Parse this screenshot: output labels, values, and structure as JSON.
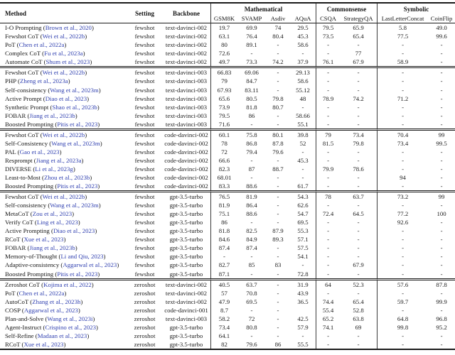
{
  "table": {
    "colors": {
      "citation_link": "#3040b0",
      "rule": "#1a1a1a"
    },
    "left_columns": [
      {
        "key": "method",
        "label": "Method"
      },
      {
        "key": "setting",
        "label": "Setting"
      },
      {
        "key": "backbone",
        "label": "Backbone"
      }
    ],
    "groups": [
      {
        "label": "Mathematical",
        "columns": [
          "GSM8K",
          "SVAMP",
          "Asdiv",
          "AQuA"
        ]
      },
      {
        "label": "Commonsense",
        "columns": [
          "CSQA",
          "StrategyQA"
        ]
      },
      {
        "label": "Symbolic",
        "columns": [
          "LastLetterConcat",
          "CoinFlip"
        ]
      }
    ],
    "blocks": [
      {
        "rows": [
          {
            "method": "I-O Prompting",
            "cite": "Brown et al., 2020",
            "setting": "fewshot",
            "backbone": "text-davinci-002",
            "values": [
              "19.7",
              "69.9",
              "74",
              "29.5",
              "79.5",
              "65.9",
              "5.8",
              "49.0"
            ]
          },
          {
            "method": "Fewshot CoT",
            "cite": "Wei et al., 2022b",
            "setting": "fewshot",
            "backbone": "text-davinci-002",
            "values": [
              "63.1",
              "76.4",
              "80.4",
              "45.3",
              "73.5",
              "65.4",
              "77.5",
              "99.6"
            ]
          },
          {
            "method": "PoT",
            "cite": "Chen et al., 2022a",
            "setting": "fewshot",
            "backbone": "text-davinci-002",
            "values": [
              "80",
              "89.1",
              "-",
              "58.6",
              "-",
              "-",
              "-",
              "-"
            ]
          },
          {
            "method": "Complex CoT",
            "cite": "Fu et al., 2023a",
            "setting": "fewshot",
            "backbone": "text-davinci-002",
            "values": [
              "72.6",
              "-",
              "-",
              "-",
              "-",
              "77",
              "-",
              "-"
            ]
          },
          {
            "method": "Automate CoT",
            "cite": "Shum et al., 2023",
            "setting": "fewshot",
            "backbone": "text-davinci-002",
            "values": [
              "49.7",
              "73.3",
              "74.2",
              "37.9",
              "76.1",
              "67.9",
              "58.9",
              "-"
            ]
          }
        ]
      },
      {
        "rows": [
          {
            "method": "Fewshot CoT",
            "cite": "Wei et al., 2022b",
            "setting": "fewshot",
            "backbone": "text-davinci-003",
            "values": [
              "66.83",
              "69.06",
              "-",
              "29.13",
              "-",
              "-",
              "-",
              "-"
            ]
          },
          {
            "method": "PHP",
            "cite": "Zheng et al., 2023a",
            "setting": "fewshot",
            "backbone": "text-davinci-003",
            "values": [
              "79",
              "84.7",
              "-",
              "58.6",
              "-",
              "-",
              "-",
              "-"
            ]
          },
          {
            "method": "Self-consistency",
            "cite": "Wang et al., 2023m",
            "setting": "fewshot",
            "backbone": "text-davinci-003",
            "values": [
              "67.93",
              "83.11",
              "-",
              "55.12",
              "-",
              "-",
              "-",
              "-"
            ]
          },
          {
            "method": "Active Prompt",
            "cite": "Diao et al., 2023",
            "setting": "fewshot",
            "backbone": "text-davinci-003",
            "values": [
              "65.6",
              "80.5",
              "79.8",
              "48",
              "78.9",
              "74.2",
              "71.2",
              "-"
            ]
          },
          {
            "method": "Synthetic Prompt",
            "cite": "Shao et al., 2023b",
            "setting": "fewshot",
            "backbone": "text-davinci-003",
            "values": [
              "73.9",
              "81.8",
              "80.7",
              "-",
              "-",
              "-",
              "-",
              "-"
            ]
          },
          {
            "method": "FOBAR",
            "cite": "Jiang et al., 2023b",
            "setting": "fewshot",
            "backbone": "text-davinci-003",
            "values": [
              "79.5",
              "86",
              "-",
              "58.66",
              "-",
              "-",
              "-",
              "-"
            ]
          },
          {
            "method": "Boosted Prompting",
            "cite": "Pitis et al., 2023",
            "setting": "fewshot",
            "backbone": "text-davinci-003",
            "values": [
              "71.6",
              "-",
              "-",
              "55.1",
              "-",
              "-",
              "-",
              "-"
            ]
          }
        ]
      },
      {
        "rows": [
          {
            "method": "Fewshot CoT",
            "cite": "Wei et al., 2022b",
            "setting": "fewshot",
            "backbone": "code-davinci-002",
            "values": [
              "60.1",
              "75.8",
              "80.1",
              "39.8",
              "79",
              "73.4",
              "70.4",
              "99"
            ]
          },
          {
            "method": "Self-Consistency",
            "cite": "Wang et al., 2023m",
            "setting": "fewshot",
            "backbone": "code-davinci-002",
            "values": [
              "78",
              "86.8",
              "87.8",
              "52",
              "81.5",
              "79.8",
              "73.4",
              "99.5"
            ]
          },
          {
            "method": "PAL",
            "cite": "Gao et al., 2023",
            "setting": "fewshot",
            "backbone": "code-davinci-002",
            "values": [
              "72",
              "79.4",
              "79.6",
              "-",
              "-",
              "-",
              "-",
              "-"
            ]
          },
          {
            "method": "Resprompt",
            "cite": "Jiang et al., 2023a",
            "setting": "fewshot",
            "backbone": "code-davinci-002",
            "values": [
              "66.6",
              "-",
              "-",
              "45.3",
              "-",
              "-",
              "-",
              "-"
            ]
          },
          {
            "method": "DIVERSE",
            "cite": "Li et al., 2023g",
            "setting": "fewshot",
            "backbone": "code-davinci-002",
            "values": [
              "82.3",
              "87",
              "88.7",
              "-",
              "79.9",
              "78.6",
              "-",
              "-"
            ]
          },
          {
            "method": "Least-to-Most",
            "cite": "Zhou et al., 2023b",
            "setting": "fewshot",
            "backbone": "code-davinci-002",
            "values": [
              "68.01",
              "-",
              "-",
              "-",
              "-",
              "-",
              "94",
              "-"
            ]
          },
          {
            "method": "Boosted Prompting",
            "cite": "Pitis et al., 2023",
            "setting": "fewshot",
            "backbone": "code-davinci-002",
            "values": [
              "83.3",
              "88.6",
              "-",
              "61.7",
              "-",
              "-",
              "-",
              "-"
            ]
          }
        ]
      },
      {
        "rows": [
          {
            "method": "Fewshot CoT",
            "cite": "Wei et al., 2022b",
            "setting": "fewshot",
            "backbone": "gpt-3.5-turbo",
            "values": [
              "76.5",
              "81.9",
              "-",
              "54.3",
              "78",
              "63.7",
              "73.2",
              "99"
            ]
          },
          {
            "method": "Self-consistency",
            "cite": "Wang et al., 2023m",
            "setting": "fewshot",
            "backbone": "gpt-3.5-turbo",
            "values": [
              "81.9",
              "86.4",
              "-",
              "62.6",
              "-",
              "-",
              "-",
              "-"
            ]
          },
          {
            "method": "MetaCoT",
            "cite": "Zou et al., 2023",
            "setting": "fewshot",
            "backbone": "gpt-3.5-turbo",
            "values": [
              "75.1",
              "88.6",
              "-",
              "54.7",
              "72.4",
              "64.5",
              "77.2",
              "100"
            ]
          },
          {
            "method": "Verify CoT",
            "cite": "Ling et al., 2023",
            "setting": "fewshot",
            "backbone": "gpt-3.5-turbo",
            "values": [
              "86",
              "-",
              "-",
              "69.5",
              "-",
              "-",
              "92.6",
              "-"
            ]
          },
          {
            "method": "Active Prompting",
            "cite": "Diao et al., 2023",
            "setting": "fewshot",
            "backbone": "gpt-3.5-turbo",
            "values": [
              "81.8",
              "82.5",
              "87.9",
              "55.3",
              "-",
              "-",
              "-",
              "-"
            ]
          },
          {
            "method": "RCoT",
            "cite": "Xue et al., 2023",
            "setting": "fewshot",
            "backbone": "gpt-3.5-turbo",
            "values": [
              "84.6",
              "84.9",
              "89.3",
              "57.1",
              "-",
              "-",
              "-",
              "-"
            ]
          },
          {
            "method": "FOBAR",
            "cite": "Jiang et al., 2023b",
            "setting": "fewshot",
            "backbone": "gpt-3.5-turbo",
            "values": [
              "87.4",
              "87.4",
              "-",
              "57.5",
              "-",
              "-",
              "-",
              "-"
            ]
          },
          {
            "method": "Memory-of-Thought",
            "cite": "Li and Qiu, 2023",
            "setting": "fewshot",
            "backbone": "gpt-3.5-turbo",
            "values": [
              "-",
              "-",
              "-",
              "54.1",
              "-",
              "-",
              "-",
              "-"
            ]
          },
          {
            "method": "Adaptive-consistency",
            "cite": "Aggarwal et al., 2023",
            "setting": "fewshot",
            "backbone": "gpt-3.5-turbo",
            "values": [
              "82.7",
              "85",
              "83",
              "-",
              "-",
              "67.9",
              "-",
              "-"
            ]
          },
          {
            "method": "Boosted Prompting",
            "cite": "Pitis et al., 2023",
            "setting": "fewshot",
            "backbone": "gpt-3.5-turbo",
            "values": [
              "87.1",
              "-",
              "-",
              "72.8",
              "-",
              "-",
              "-",
              "-"
            ]
          }
        ]
      },
      {
        "rows": [
          {
            "method": "Zeroshot CoT",
            "cite": "Kojima et al., 2022",
            "setting": "zeroshot",
            "backbone": "text-davinci-002",
            "values": [
              "40.5",
              "63.7",
              "-",
              "31.9",
              "64",
              "52.3",
              "57.6",
              "87.8"
            ]
          },
          {
            "method": "PoT",
            "cite": "Chen et al., 2022a",
            "setting": "zeroshot",
            "backbone": "text-davinci-002",
            "values": [
              "57",
              "70.8",
              "-",
              "43.9",
              "-",
              "-",
              "-",
              "-"
            ]
          },
          {
            "method": "AutoCoT",
            "cite": "Zhang et al., 2023h",
            "setting": "zeroshot",
            "backbone": "text-davinci-002",
            "values": [
              "47.9",
              "69.5",
              "-",
              "36.5",
              "74.4",
              "65.4",
              "59.7",
              "99.9"
            ]
          },
          {
            "method": "COSP",
            "cite": "Aggarwal et al., 2023",
            "setting": "zeroshot",
            "backbone": "code-davinci-001",
            "values": [
              "8.7",
              "-",
              "-",
              "",
              "55.4",
              "52.8",
              "-",
              "-"
            ]
          },
          {
            "method": "Plan-and-Solve",
            "cite": "Wang et al., 2023i",
            "setting": "zeroshot",
            "backbone": "text-davinci-003",
            "values": [
              "58.2",
              "72",
              "-",
              "42.5",
              "65.2",
              "63.8",
              "64.8",
              "96.8"
            ]
          },
          {
            "method": "Agent-Instruct",
            "cite": "Crispino et al., 2023",
            "setting": "zeroshot",
            "backbone": "gpt-3.5-turbo",
            "values": [
              "73.4",
              "80.8",
              "-",
              "57.9",
              "74.1",
              "69",
              "99.8",
              "95.2"
            ]
          },
          {
            "method": "Self-Refine",
            "cite": "Madaan et al., 2023",
            "setting": "zeroshot",
            "backbone": "gpt-3.5-turbo",
            "values": [
              "64.1",
              "-",
              "-",
              "-",
              "-",
              "-",
              "-",
              "-"
            ]
          },
          {
            "method": "RCoT",
            "cite": "Xue et al., 2023",
            "setting": "zeroshot",
            "backbone": "gpt-3.5-turbo",
            "values": [
              "82",
              "79.6",
              "86",
              "55.5",
              "-",
              "-",
              "-",
              "-"
            ]
          }
        ]
      }
    ]
  }
}
